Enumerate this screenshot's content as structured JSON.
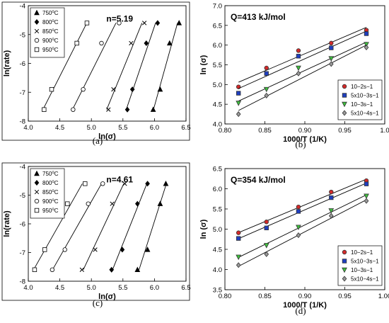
{
  "chart_data": [
    {
      "type": "scatter",
      "panel_label": "(a)",
      "xlabel": "ln(σ)",
      "ylabel": "ln(rate)",
      "xlim": [
        4.0,
        6.5
      ],
      "ylim": [
        -8,
        -4
      ],
      "xticks": [
        "4.0",
        "4.5",
        "5.0",
        "5.5",
        "6.0",
        "6.5"
      ],
      "yticks": [
        "-8",
        "-7",
        "-6",
        "-5",
        "-4"
      ],
      "annotation": "n=5.19",
      "legend_position": "top-left",
      "legend_label_sets": [
        "750",
        "800",
        "850",
        "900",
        "950"
      ],
      "series": [
        {
          "name": "750oC",
          "marker": "triangle",
          "points": [
            [
              5.98,
              -7.6
            ],
            [
              6.09,
              -6.9
            ],
            [
              6.24,
              -5.3
            ],
            [
              6.39,
              -4.6
            ]
          ]
        },
        {
          "name": "800oC",
          "marker": "diamond",
          "points": [
            [
              5.57,
              -7.6
            ],
            [
              5.65,
              -6.9
            ],
            [
              5.87,
              -5.3
            ],
            [
              6.05,
              -4.6
            ]
          ]
        },
        {
          "name": "850oC",
          "marker": "x",
          "points": [
            [
              5.27,
              -7.6
            ],
            [
              5.35,
              -6.9
            ],
            [
              5.63,
              -5.3
            ],
            [
              5.84,
              -4.6
            ]
          ]
        },
        {
          "name": "900oC",
          "marker": "circle",
          "points": [
            [
              4.71,
              -7.6
            ],
            [
              4.87,
              -6.9
            ],
            [
              5.16,
              -5.3
            ],
            [
              5.44,
              -4.6
            ]
          ]
        },
        {
          "name": "950oC",
          "marker": "square",
          "points": [
            [
              4.25,
              -7.6
            ],
            [
              4.37,
              -6.9
            ],
            [
              4.77,
              -5.3
            ],
            [
              4.93,
              -4.6
            ]
          ]
        }
      ]
    },
    {
      "type": "scatter",
      "panel_label": "(b)",
      "xlabel": "1000/T (1/K)",
      "ylabel": "ln (σ)",
      "xlim": [
        0.8,
        1.0
      ],
      "ylim": [
        4.0,
        7.0
      ],
      "xticks": [
        "0.80",
        "0.85",
        "0.90",
        "0.95",
        "1.0"
      ],
      "yticks": [
        "4.0",
        "4.5",
        "5.0",
        "5.5",
        "6.0",
        "6.5",
        "7.0"
      ],
      "annotation": "Q=413 kJ/mol",
      "legend_position": "bottom-right",
      "x": [
        0.817,
        0.852,
        0.892,
        0.933,
        0.977
      ],
      "series": [
        {
          "name": "10−2s−1",
          "color": "#d42a2a",
          "marker": "circle",
          "values": [
            4.94,
            5.42,
            5.86,
            6.05,
            6.38
          ]
        },
        {
          "name": "5x10−3s−1",
          "color": "#1f3fbf",
          "marker": "square",
          "values": [
            4.78,
            5.28,
            5.72,
            5.93,
            6.29
          ]
        },
        {
          "name": "10−3s−1",
          "color": "#3fbf3f",
          "marker": "triangle-down",
          "values": [
            4.53,
            4.88,
            5.42,
            5.66,
            6.02
          ]
        },
        {
          "name": "5x10−4s−1",
          "color": "#9a9a9a",
          "marker": "diamond",
          "values": [
            4.25,
            4.72,
            5.28,
            5.52,
            5.94
          ]
        }
      ]
    },
    {
      "type": "scatter",
      "panel_label": "(c)",
      "xlabel": "ln(σ)",
      "ylabel": "ln(rate)",
      "xlim": [
        4.0,
        6.5
      ],
      "ylim": [
        -8,
        -4
      ],
      "xticks": [
        "4.0",
        "4.5",
        "5.0",
        "5.5",
        "6.0",
        "6.5"
      ],
      "yticks": [
        "-8",
        "-7",
        "-6",
        "-5",
        "-4"
      ],
      "annotation": "n=4.61",
      "legend_position": "top-left",
      "legend_label_sets": [
        "750",
        "800",
        "850",
        "900",
        "950"
      ],
      "series": [
        {
          "name": "750oC",
          "marker": "triangle",
          "points": [
            [
              5.73,
              -7.6
            ],
            [
              5.89,
              -6.9
            ],
            [
              6.09,
              -5.3
            ],
            [
              6.18,
              -4.6
            ]
          ]
        },
        {
          "name": "800oC",
          "marker": "diamond",
          "points": [
            [
              5.32,
              -7.6
            ],
            [
              5.49,
              -6.9
            ],
            [
              5.73,
              -5.3
            ],
            [
              5.89,
              -4.6
            ]
          ]
        },
        {
          "name": "850oC",
          "marker": "x",
          "points": [
            [
              4.85,
              -7.6
            ],
            [
              5.06,
              -6.9
            ],
            [
              5.33,
              -5.3
            ],
            [
              5.53,
              -4.6
            ]
          ]
        },
        {
          "name": "900oC",
          "marker": "circle",
          "points": [
            [
              4.38,
              -7.6
            ],
            [
              4.58,
              -6.9
            ],
            [
              4.95,
              -5.3
            ],
            [
              5.18,
              -4.6
            ]
          ]
        },
        {
          "name": "950oC",
          "marker": "square",
          "points": [
            [
              4.1,
              -7.6
            ],
            [
              4.26,
              -6.9
            ],
            [
              4.62,
              -5.3
            ],
            [
              4.9,
              -4.6
            ]
          ]
        }
      ]
    },
    {
      "type": "scatter",
      "panel_label": "(d)",
      "xlabel": "1000/T (1/K)",
      "ylabel": "ln (σ)",
      "xlim": [
        0.8,
        1.0
      ],
      "ylim": [
        3.5,
        6.5
      ],
      "xticks": [
        "0.80",
        "0.85",
        "0.90",
        "0.95",
        "1.00"
      ],
      "yticks": [
        "3.5",
        "4.0",
        "4.5",
        "5.0",
        "5.5",
        "6.0",
        "6.5"
      ],
      "annotation": "Q=354 kJ/mol",
      "legend_position": "bottom-right",
      "x": [
        0.817,
        0.852,
        0.892,
        0.933,
        0.977
      ],
      "series": [
        {
          "name": "10−2s−1",
          "color": "#d42a2a",
          "marker": "circle",
          "values": [
            4.91,
            5.18,
            5.55,
            5.92,
            6.2
          ]
        },
        {
          "name": "5x10−3s−1",
          "color": "#1f3fbf",
          "marker": "square",
          "values": [
            4.77,
            5.03,
            5.44,
            5.78,
            6.12
          ]
        },
        {
          "name": "10−3s−1",
          "color": "#3fbf3f",
          "marker": "triangle-down",
          "values": [
            4.31,
            4.6,
            5.05,
            5.46,
            5.82
          ]
        },
        {
          "name": "5x10−4s−1",
          "color": "#9a9a9a",
          "marker": "diamond",
          "values": [
            4.11,
            4.38,
            4.85,
            5.33,
            5.7
          ]
        }
      ]
    }
  ]
}
